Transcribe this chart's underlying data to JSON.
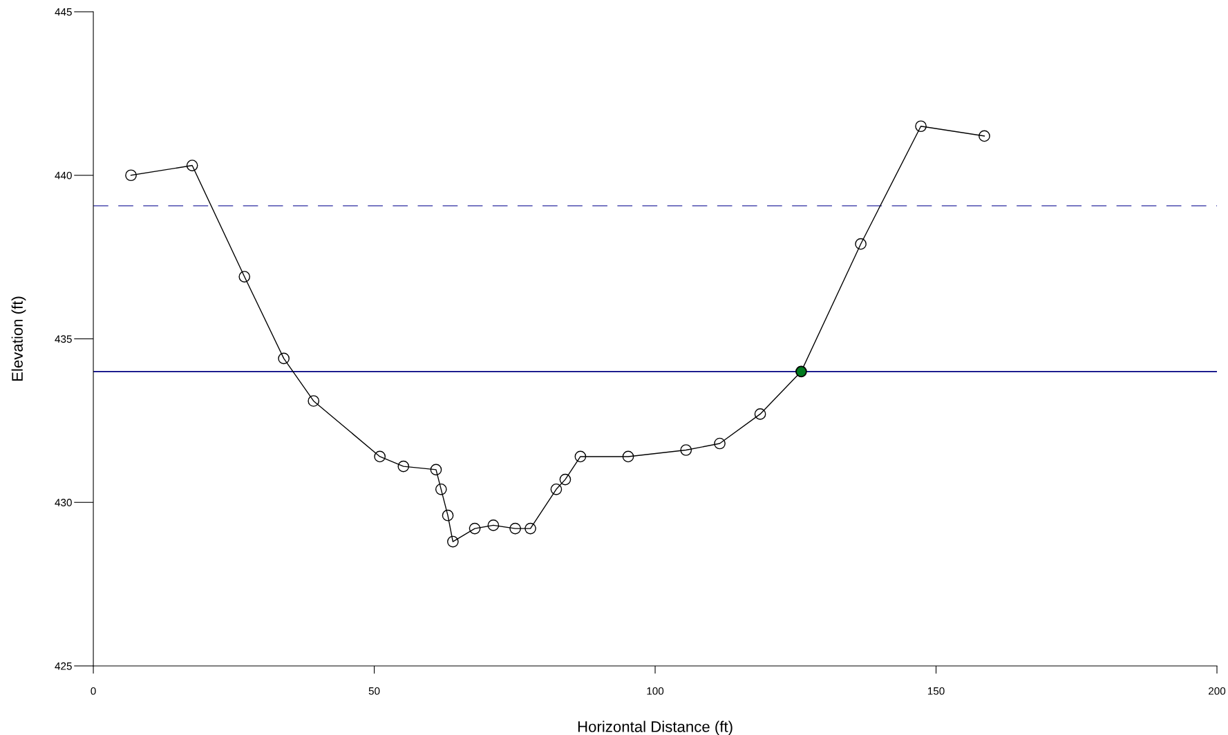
{
  "chart_data": {
    "type": "line",
    "xlabel": "Horizontal Distance (ft)",
    "ylabel": "Elevation (ft)",
    "xlim": [
      0,
      200
    ],
    "xticks": [
      0,
      50,
      100,
      150,
      200
    ],
    "ylim": [
      425,
      445
    ],
    "yticks": [
      425,
      430,
      435,
      440,
      445
    ],
    "grid": false,
    "legend": false,
    "series": [
      {
        "color": "#000000",
        "marker": "circle",
        "line_style": "solid",
        "x": [
          6.7,
          17.6,
          26.9,
          33.9,
          39.2,
          51.0,
          55.2,
          61.0,
          61.9,
          63.1,
          64.0,
          67.9,
          71.2,
          75.1,
          77.8,
          82.4,
          84.0,
          86.7,
          95.2,
          105.5,
          111.5,
          118.7,
          126.0,
          136.6,
          147.3,
          158.6
        ],
        "values": [
          440.0,
          440.3,
          436.9,
          434.4,
          433.1,
          431.4,
          431.1,
          431.0,
          430.4,
          429.6,
          428.8,
          429.2,
          429.3,
          429.2,
          429.2,
          430.4,
          430.7,
          431.4,
          431.4,
          431.6,
          431.8,
          432.7,
          434.0,
          437.9,
          441.5,
          441.2
        ]
      },
      {
        "type": "scatter",
        "color": "#007a1f",
        "marker": "circle",
        "x": [
          126.0
        ],
        "values": [
          434.0
        ]
      }
    ],
    "ref_lines": [
      {
        "axis": "y",
        "value": 439.07,
        "color": "#6666bb",
        "line_style": "dashed"
      },
      {
        "axis": "y",
        "value": 434.0,
        "color": "#000080",
        "line_style": "solid"
      }
    ]
  }
}
